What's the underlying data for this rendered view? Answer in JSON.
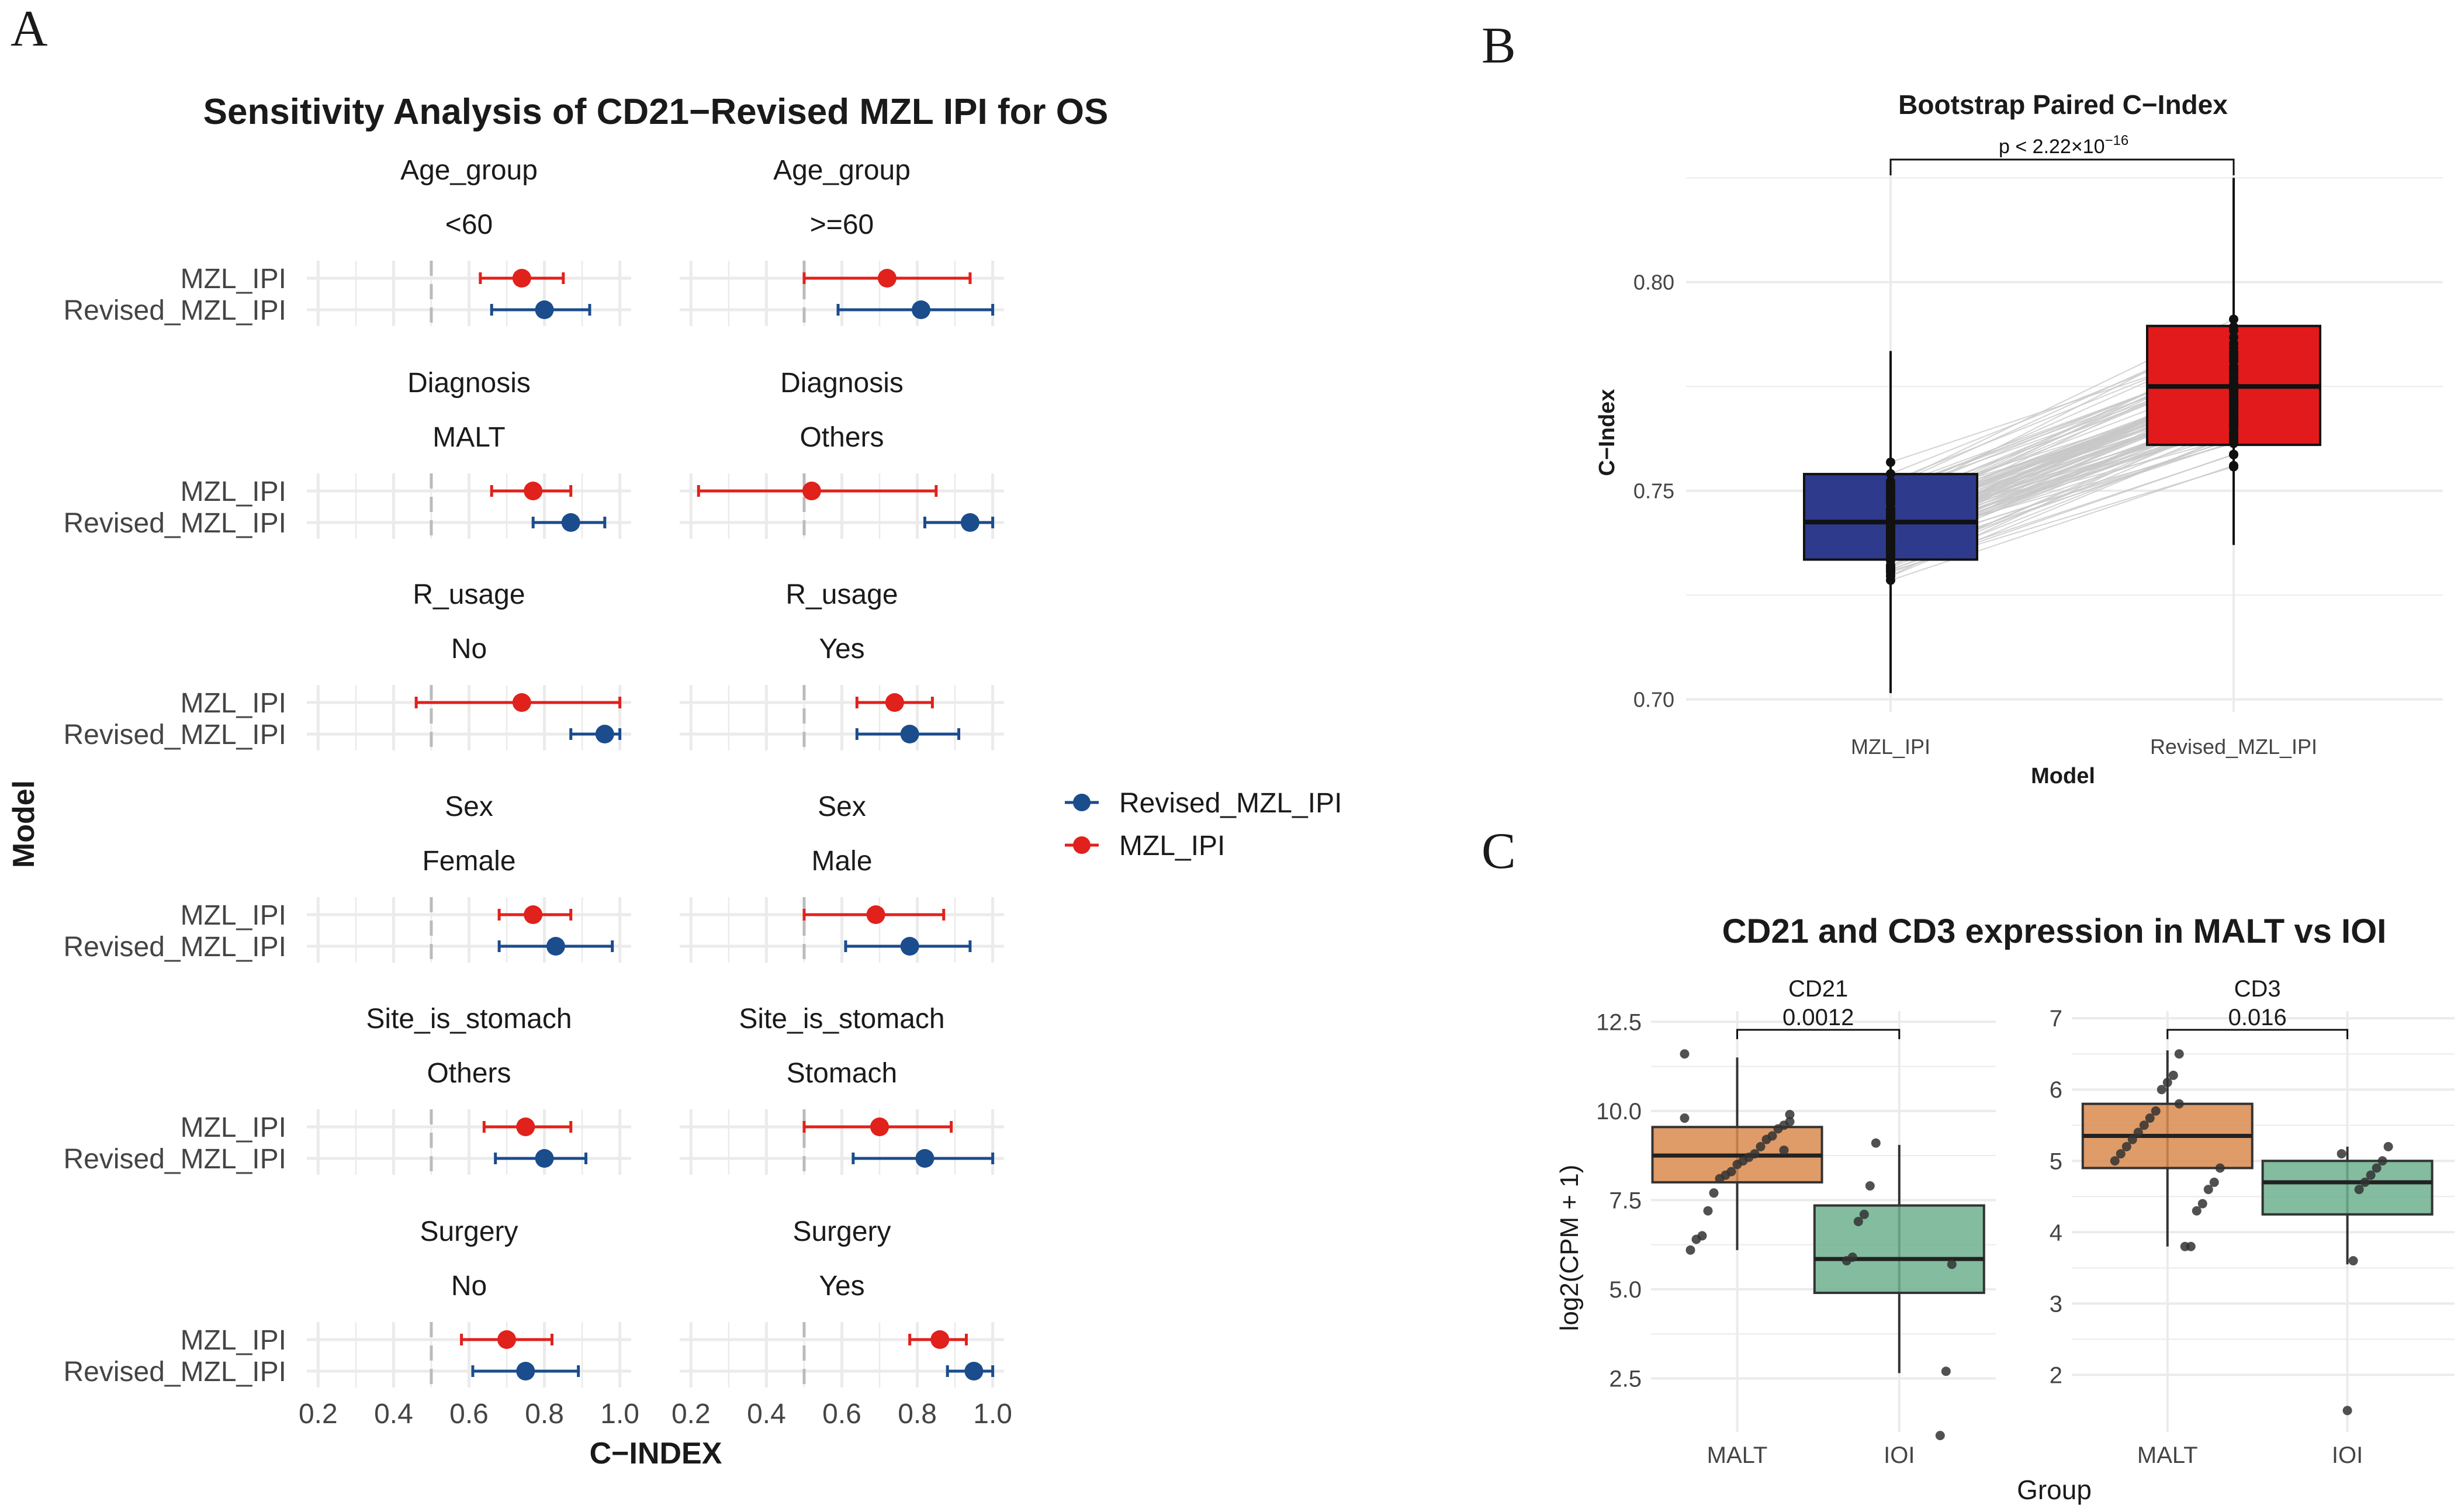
{
  "colors": {
    "revised": "#1B4C8C",
    "mzl": "#E0211C",
    "boxMZL": "#2E3A8C",
    "boxRevised": "#E31A1C",
    "malt": "#D98A4E",
    "ioi": "#6DB08E",
    "grid": "#EBEBEB",
    "ref": "#BBBBBB"
  },
  "panels": {
    "a": "A",
    "b": "B",
    "c": "C"
  },
  "chart_data": [
    {
      "type": "forest",
      "panel": "A",
      "title": "Sensitivity Analysis of CD21−Revised MZL IPI for OS",
      "xlabel": "C−INDEX",
      "ylabel": "Model",
      "xlim": [
        0.17,
        1.03
      ],
      "xticks": [
        0.2,
        0.4,
        0.6,
        0.8,
        1.0
      ],
      "xtick_labels": [
        "0.2",
        "0.4",
        "0.6",
        "0.8",
        "1.0"
      ],
      "reference_line": 0.5,
      "row_labels": [
        "MZL_IPI",
        "Revised_MZL_IPI"
      ],
      "legend": [
        "Revised_MZL_IPI",
        "MZL_IPI"
      ],
      "facets": [
        {
          "variable": "Age_group",
          "level": "<60",
          "mzl": [
            0.74,
            0.63,
            0.85
          ],
          "revised": [
            0.8,
            0.66,
            0.92
          ]
        },
        {
          "variable": "Age_group",
          "level": ">=60",
          "mzl": [
            0.72,
            0.5,
            0.94
          ],
          "revised": [
            0.81,
            0.59,
            1.0
          ]
        },
        {
          "variable": "Diagnosis",
          "level": "MALT",
          "mzl": [
            0.77,
            0.66,
            0.87
          ],
          "revised": [
            0.87,
            0.77,
            0.96
          ]
        },
        {
          "variable": "Diagnosis",
          "level": "Others",
          "mzl": [
            0.52,
            0.22,
            0.85
          ],
          "revised": [
            0.94,
            0.82,
            1.0
          ]
        },
        {
          "variable": "R_usage",
          "level": "No",
          "mzl": [
            0.74,
            0.46,
            1.0
          ],
          "revised": [
            0.96,
            0.87,
            1.0
          ]
        },
        {
          "variable": "R_usage",
          "level": "Yes",
          "mzl": [
            0.74,
            0.64,
            0.84
          ],
          "revised": [
            0.78,
            0.64,
            0.91
          ]
        },
        {
          "variable": "Sex",
          "level": "Female",
          "mzl": [
            0.77,
            0.68,
            0.87
          ],
          "revised": [
            0.83,
            0.68,
            0.98
          ]
        },
        {
          "variable": "Sex",
          "level": "Male",
          "mzl": [
            0.69,
            0.5,
            0.87
          ],
          "revised": [
            0.78,
            0.61,
            0.94
          ]
        },
        {
          "variable": "Site_is_stomach",
          "level": "Others",
          "mzl": [
            0.75,
            0.64,
            0.87
          ],
          "revised": [
            0.8,
            0.67,
            0.91
          ]
        },
        {
          "variable": "Site_is_stomach",
          "level": "Stomach",
          "mzl": [
            0.7,
            0.5,
            0.89
          ],
          "revised": [
            0.82,
            0.63,
            1.0
          ]
        },
        {
          "variable": "Surgery",
          "level": "No",
          "mzl": [
            0.7,
            0.58,
            0.82
          ],
          "revised": [
            0.75,
            0.61,
            0.89
          ]
        },
        {
          "variable": "Surgery",
          "level": "Yes",
          "mzl": [
            0.86,
            0.78,
            0.93
          ],
          "revised": [
            0.95,
            0.88,
            1.0
          ]
        }
      ]
    },
    {
      "type": "paired-box",
      "panel": "B",
      "title": "Bootstrap Paired C−Index",
      "xlabel": "Model",
      "ylabel": "C−Index",
      "ylim": [
        0.697,
        0.827
      ],
      "yticks": [
        0.7,
        0.75,
        0.8
      ],
      "ytick_labels": [
        "0.70",
        "0.75",
        "0.80"
      ],
      "categories": [
        "MZL_IPI",
        "Revised_MZL_IPI"
      ],
      "boxes": [
        {
          "q1": 0.7335,
          "median": 0.7425,
          "q3": 0.754,
          "min": 0.7015,
          "max": 0.7835
        },
        {
          "q1": 0.761,
          "median": 0.775,
          "q3": 0.7895,
          "min": 0.737,
          "max": 0.825
        }
      ],
      "comparison": {
        "prefix": "p < 2.22×10",
        "exponent": "−16"
      }
    },
    {
      "type": "box",
      "panel": "C",
      "title": "CD21 and CD3 expression in MALT vs IOI",
      "xlabel": "Group",
      "ylabel": "log2(CPM + 1)",
      "categories": [
        "MALT",
        "IOI"
      ],
      "facets": [
        {
          "name": "CD21",
          "p": "0.0012",
          "ylim": [
            1.0,
            12.8
          ],
          "yticks": [
            2.5,
            5.0,
            7.5,
            10.0,
            12.5
          ],
          "ytick_labels": [
            "2.5",
            "5.0",
            "7.5",
            "10.0",
            "12.5"
          ],
          "boxes": [
            {
              "q1": 8.0,
              "median": 8.75,
              "q3": 9.55,
              "min": 6.1,
              "max": 11.5
            },
            {
              "q1": 4.9,
              "median": 5.85,
              "q3": 7.35,
              "min": 2.65,
              "max": 9.05
            }
          ],
          "points": [
            [
              9.8,
              9.7,
              9.6,
              9.5,
              9.3,
              9.2,
              9.0,
              8.8,
              8.7,
              8.6,
              8.5,
              8.3,
              8.2,
              8.1,
              7.7,
              7.2,
              6.5,
              6.4,
              6.1,
              11.6,
              9.9,
              8.9
            ],
            [
              9.1,
              7.9,
              7.1,
              6.9,
              5.9,
              5.8,
              5.7,
              2.7,
              0.9
            ]
          ]
        },
        {
          "name": "CD3",
          "p": "0.016",
          "ylim": [
            1.2,
            7.1
          ],
          "yticks": [
            2,
            3,
            4,
            5,
            6,
            7
          ],
          "ytick_labels": [
            "2",
            "3",
            "4",
            "5",
            "6",
            "7"
          ],
          "boxes": [
            {
              "q1": 4.9,
              "median": 5.35,
              "q3": 5.8,
              "min": 3.8,
              "max": 6.55
            },
            {
              "q1": 4.25,
              "median": 4.7,
              "q3": 5.0,
              "min": 3.55,
              "max": 5.2
            }
          ],
          "points": [
            [
              6.5,
              6.2,
              6.1,
              6.0,
              5.7,
              5.6,
              5.5,
              5.4,
              5.3,
              5.2,
              5.1,
              5.0,
              4.9,
              4.7,
              4.6,
              4.4,
              4.3,
              3.8,
              3.8,
              5.8
            ],
            [
              5.2,
              5.0,
              4.9,
              4.8,
              4.7,
              4.6,
              3.6,
              1.5,
              5.1
            ]
          ]
        }
      ]
    }
  ]
}
